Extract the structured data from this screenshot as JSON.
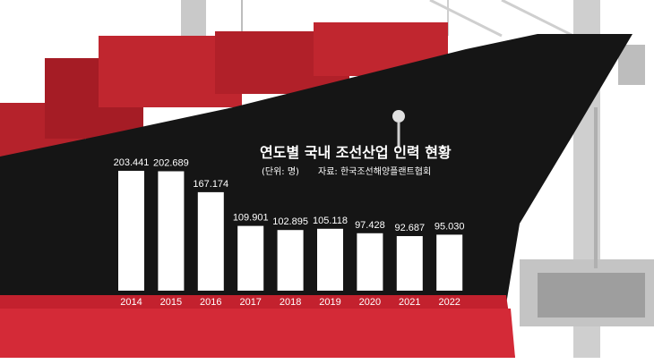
{
  "chart_data": {
    "type": "bar",
    "title": "연도별 국내 조선산업 인력 현황",
    "unit_note": "(단위: 명)",
    "source_note": "자료: 한국조선해양플랜트협회",
    "categories": [
      "2014",
      "2015",
      "2016",
      "2017",
      "2018",
      "2019",
      "2020",
      "2021",
      "2022"
    ],
    "values": [
      203441,
      202689,
      167174,
      109901,
      102895,
      105118,
      97428,
      92687,
      95030
    ],
    "value_labels": [
      "203.441",
      "202.689",
      "167.174",
      "109.901",
      "102.895",
      "105.118",
      "97.428",
      "92.687",
      "95.030"
    ],
    "xlabel": "",
    "ylabel": "",
    "ylim": [
      0,
      215000
    ],
    "grid": false,
    "bar_color": "#ffffff",
    "background": "illustration of a black and red ship hull with red containers and a grey crane"
  }
}
